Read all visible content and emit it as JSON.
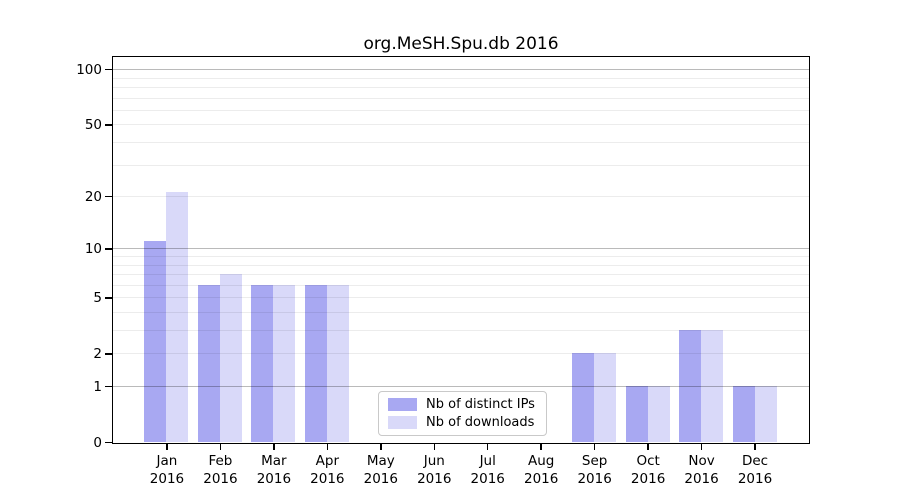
{
  "title": "org.MeSH.Spu.db 2016",
  "chart_data": {
    "type": "bar",
    "title": "org.MeSH.Spu.db 2016",
    "categories": [
      "Jan 2016",
      "Feb 2016",
      "Mar 2016",
      "Apr 2016",
      "May 2016",
      "Jun 2016",
      "Jul 2016",
      "Aug 2016",
      "Sep 2016",
      "Oct 2016",
      "Nov 2016",
      "Dec 2016"
    ],
    "series": [
      {
        "name": "Nb of distinct IPs",
        "color": "#a8a8f2",
        "values": [
          11,
          6,
          6,
          6,
          0,
          0,
          0,
          0,
          2,
          1,
          3,
          1
        ]
      },
      {
        "name": "Nb of downloads",
        "color": "#d9d9f9",
        "values": [
          21,
          7,
          6,
          6,
          0,
          0,
          0,
          0,
          2,
          1,
          3,
          1
        ]
      }
    ],
    "yscale": "log10(1+v)",
    "ylim": [
      0,
      118
    ],
    "yticks": [
      0,
      1,
      2,
      5,
      10,
      20,
      50,
      100
    ],
    "major_gridlines": [
      1,
      10,
      100
    ],
    "minor_gridlines": [
      2,
      3,
      4,
      5,
      6,
      7,
      8,
      9,
      20,
      30,
      40,
      50,
      60,
      70,
      80,
      90
    ],
    "grid": "on",
    "legend_position": "bottom-center",
    "xlabel": "",
    "ylabel": ""
  },
  "colors": {
    "distinct_ips_bar": "#a8a8f2",
    "downloads_bar": "#d9d9f9",
    "spine": "#000000",
    "grid_major": "#bababa",
    "grid_minor": "#ececec",
    "legend_border": "#c9c9c9",
    "background": "#ffffff"
  }
}
